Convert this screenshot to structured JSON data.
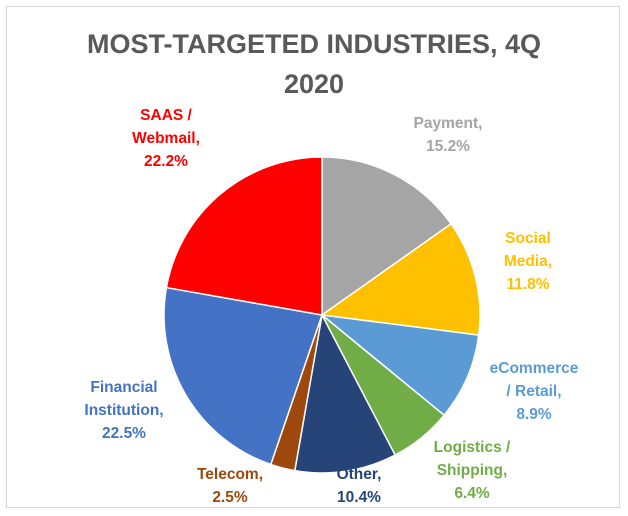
{
  "chart_data": {
    "type": "pie",
    "title": [
      "MOST-TARGETED INDUSTRIES, 4Q",
      "2020"
    ],
    "slices": [
      {
        "label": [
          "Payment,",
          "15.2%"
        ],
        "name": "Payment",
        "value": 15.2,
        "color": "#a5a5a5"
      },
      {
        "label": [
          "Social",
          "Media,",
          "11.8%"
        ],
        "name": "Social Media",
        "value": 11.8,
        "color": "#ffc000"
      },
      {
        "label": [
          "eCommerce",
          "/ Retail,",
          "8.9%"
        ],
        "name": "eCommerce / Retail",
        "value": 8.9,
        "color": "#5b9bd5"
      },
      {
        "label": [
          "Logistics /",
          "Shipping,",
          "6.4%"
        ],
        "name": "Logistics / Shipping",
        "value": 6.4,
        "color": "#70ad47"
      },
      {
        "label": [
          "Other,",
          "10.4%"
        ],
        "name": "Other",
        "value": 10.4,
        "color": "#264478"
      },
      {
        "label": [
          "Telecom,",
          "2.5%"
        ],
        "name": "Telecom",
        "value": 2.5,
        "color": "#9e480e"
      },
      {
        "label": [
          "Financial",
          "Institution,",
          "22.5%"
        ],
        "name": "Financial Institution",
        "value": 22.5,
        "color": "#4472c4"
      },
      {
        "label": [
          "SAAS /",
          "Webmail,",
          "22.2%"
        ],
        "name": "SAAS / Webmail",
        "value": 22.2,
        "color": "#ff0000"
      }
    ]
  }
}
